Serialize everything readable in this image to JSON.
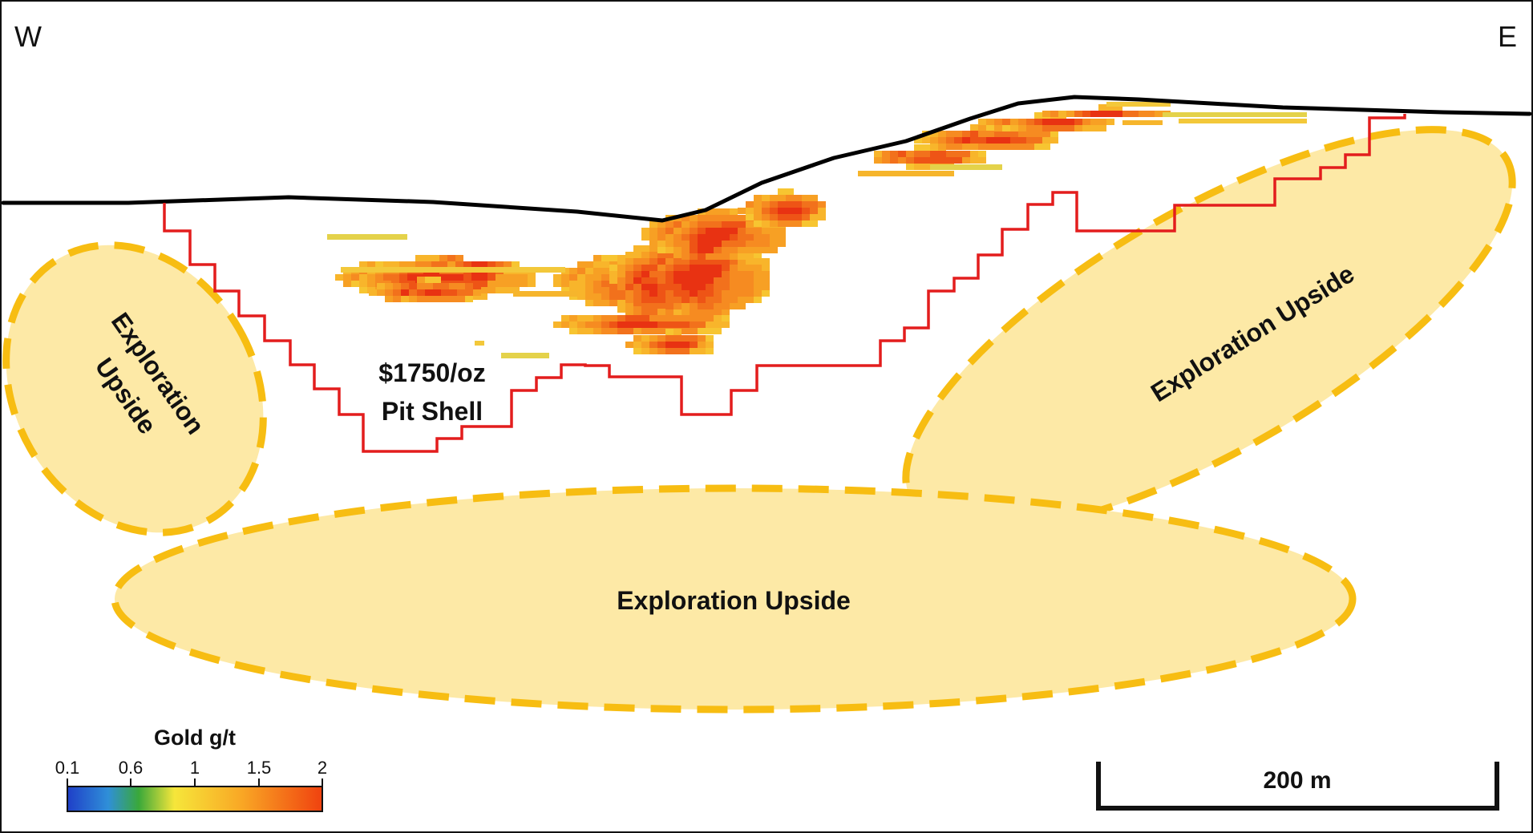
{
  "orientation": {
    "west": "W",
    "east": "E"
  },
  "pit_shell": {
    "line1": "$1750/oz",
    "line2": "Pit Shell",
    "color": "#e31d1d"
  },
  "exploration_upside": {
    "label": "Exploration Upside",
    "left_line1": "Exploration",
    "left_line2": "Upside",
    "fill": "#fde9a6",
    "stroke": "#f7bd12"
  },
  "legend": {
    "title": "Gold g/t",
    "ticks": [
      "0.1",
      "0.6",
      "1",
      "1.5",
      "2"
    ],
    "colors": [
      "#1f3fc8",
      "#3aa83a",
      "#f6e63a",
      "#f9a825",
      "#f0420f"
    ]
  },
  "scale_bar": {
    "label": "200 m"
  }
}
